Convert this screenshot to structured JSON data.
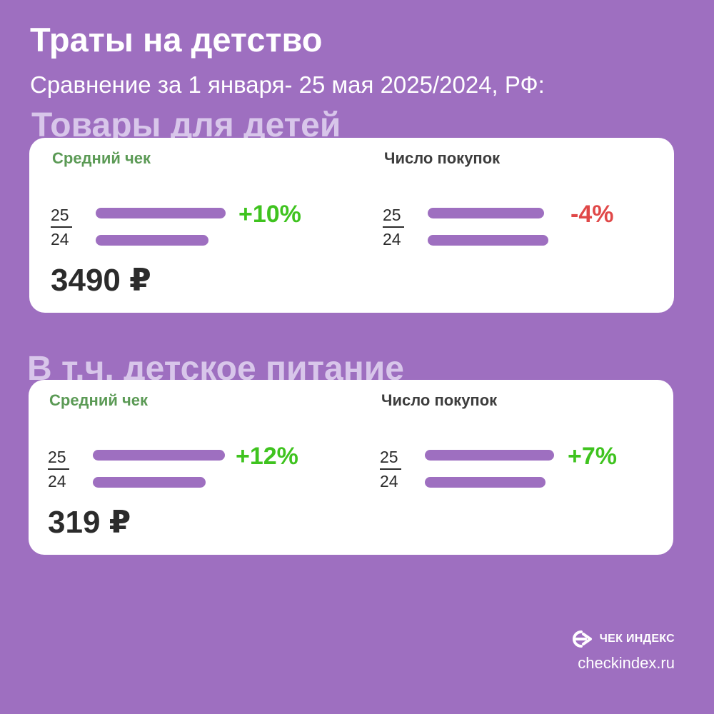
{
  "header": {
    "title": "Траты на детство",
    "subtitle": "Сравнение за 1 января- 25 мая 2025/2024, РФ:"
  },
  "sections": [
    {
      "title": "Товары для детей",
      "avg_check_label": "Средний чек",
      "count_label": "Число покупок",
      "year_new": "25",
      "year_old": "24",
      "avg_check_change": "+10%",
      "count_change": "-4%",
      "avg_check_value": "3490 ₽"
    },
    {
      "title": "В т.ч. детское питание",
      "avg_check_label": "Средний чек",
      "count_label": "Число покупок",
      "year_new": "25",
      "year_old": "24",
      "avg_check_change": "+12%",
      "count_change": "+7%",
      "avg_check_value": "319 ₽"
    }
  ],
  "footer": {
    "brand": "ЧЕК ИНДЕКС",
    "site": "checkindex.ru"
  },
  "colors": {
    "background": "#9e6fc0",
    "bar": "#9e6fc0",
    "positive": "#3fc31f",
    "negative": "#e04848",
    "label_green": "#5b9a55"
  },
  "chart_data": [
    {
      "type": "bar",
      "section": "Товары для детей",
      "title": "Средний чек",
      "categories": [
        "25",
        "24"
      ],
      "values": [
        1.1,
        1.0
      ],
      "change": "+10%",
      "value_label": "3490 ₽"
    },
    {
      "type": "bar",
      "section": "Товары для детей",
      "title": "Число покупок",
      "categories": [
        "25",
        "24"
      ],
      "values": [
        0.96,
        1.0
      ],
      "change": "-4%"
    },
    {
      "type": "bar",
      "section": "В т.ч. детское питание",
      "title": "Средний чек",
      "categories": [
        "25",
        "24"
      ],
      "values": [
        1.12,
        1.0
      ],
      "change": "+12%",
      "value_label": "319 ₽"
    },
    {
      "type": "bar",
      "section": "В т.ч. детское питание",
      "title": "Число покупок",
      "categories": [
        "25",
        "24"
      ],
      "values": [
        1.07,
        1.0
      ],
      "change": "+7%"
    }
  ]
}
